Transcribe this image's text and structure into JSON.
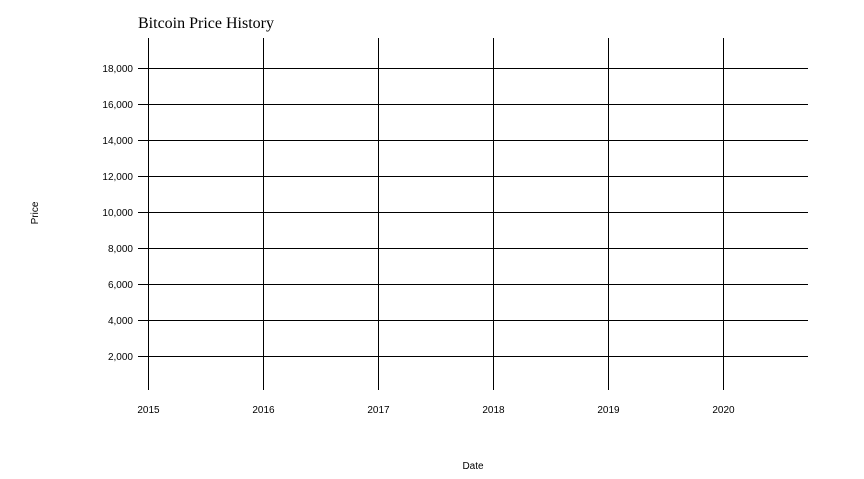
{
  "chart_data": {
    "type": "line",
    "title": "Bitcoin Price History",
    "xlabel": "Date",
    "ylabel": "Price",
    "x_ticks": [
      "2015",
      "2016",
      "2017",
      "2018",
      "2019",
      "2020"
    ],
    "y_ticks": [
      "2,000",
      "4,000",
      "6,000",
      "8,000",
      "10,000",
      "12,000",
      "14,000",
      "16,000",
      "18,000"
    ],
    "x_tick_values": [
      2015,
      2016,
      2017,
      2018,
      2019,
      2020
    ],
    "y_tick_values": [
      2000,
      4000,
      6000,
      8000,
      10000,
      12000,
      14000,
      16000,
      18000
    ],
    "xlim": [
      2015,
      2020.74
    ],
    "ylim": [
      100,
      19660
    ],
    "grid": true,
    "series": [],
    "colors": {
      "grid": "#000000",
      "background": "#ffffff"
    }
  }
}
